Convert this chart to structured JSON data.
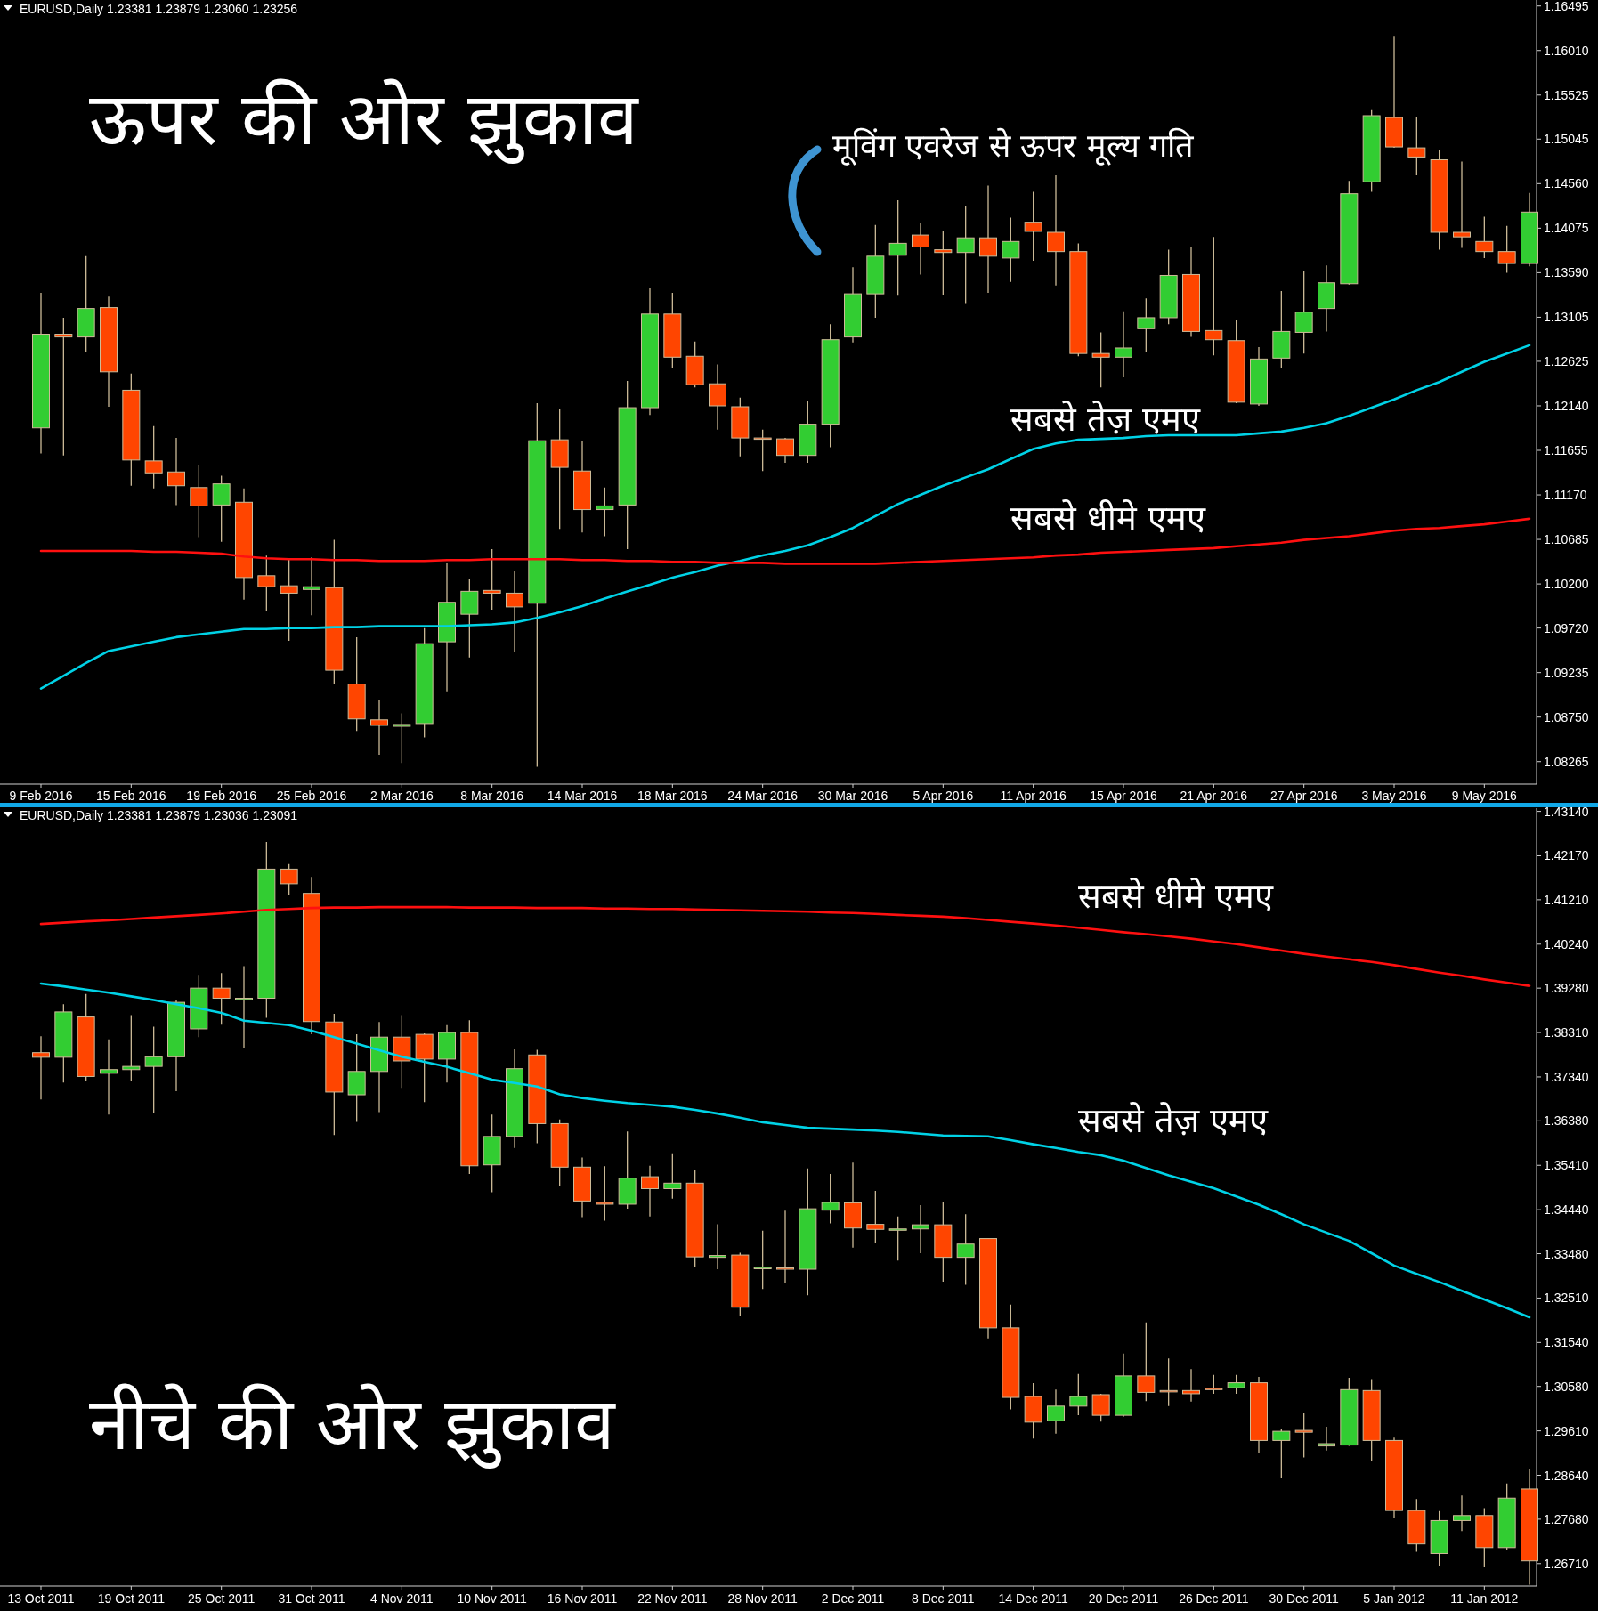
{
  "chart_data": [
    {
      "type": "candlestick",
      "title": "ऊपर की ओर झुकाव",
      "subtitle": "EURUSD,Daily  1.23381 1.23879 1.23060 1.23256",
      "annotations": [
        "मूविंग एवरेज से ऊपर मूल्य गति"
      ],
      "categories": [
        "9 Feb 2016",
        null,
        null,
        null,
        "15 Feb 2016",
        null,
        null,
        null,
        "19 Feb 2016",
        null,
        null,
        null,
        "25 Feb 2016",
        null,
        null,
        null,
        "2 Mar 2016",
        null,
        null,
        null,
        "8 Mar 2016",
        null,
        null,
        null,
        "14 Mar 2016",
        null,
        null,
        null,
        "18 Mar 2016",
        null,
        null,
        null,
        "24 Mar 2016",
        null,
        null,
        null,
        "30 Mar 2016",
        null,
        null,
        null,
        "5 Apr 2016",
        null,
        null,
        null,
        "11 Apr 2016",
        null,
        null,
        null,
        "15 Apr 2016",
        null,
        null,
        null,
        "21 Apr 2016",
        null,
        null,
        null,
        "27 Apr 2016",
        null,
        null,
        null,
        "3 May 2016",
        null,
        null,
        null,
        "9 May 2016",
        null,
        null
      ],
      "ohlc": [
        [
          1.119,
          1.1337,
          1.1162,
          1.1292
        ],
        [
          1.1292,
          1.131,
          1.116,
          1.1289
        ],
        [
          1.1289,
          1.1377,
          1.1273,
          1.132
        ],
        [
          1.1321,
          1.1333,
          1.1213,
          1.1251
        ],
        [
          1.1231,
          1.1249,
          1.1127,
          1.1155
        ],
        [
          1.1154,
          1.1192,
          1.1124,
          1.1141
        ],
        [
          1.1142,
          1.1179,
          1.1106,
          1.1127
        ],
        [
          1.1125,
          1.1149,
          1.1071,
          1.1105
        ],
        [
          1.1106,
          1.1138,
          1.1066,
          1.1129
        ],
        [
          1.1109,
          1.1124,
          1.1003,
          1.1027
        ],
        [
          1.1029,
          1.1051,
          1.099,
          1.1017
        ],
        [
          1.1018,
          1.1047,
          1.0958,
          1.101
        ],
        [
          1.1014,
          1.1049,
          1.0986,
          1.1017
        ],
        [
          1.1016,
          1.1068,
          1.0911,
          1.0926
        ],
        [
          1.0911,
          1.0962,
          1.086,
          1.0873
        ],
        [
          1.0872,
          1.0893,
          1.0834,
          1.0866
        ],
        [
          1.0865,
          1.0879,
          1.0825,
          1.0867
        ],
        [
          1.0868,
          1.0972,
          1.0853,
          1.0955
        ],
        [
          1.0957,
          1.1043,
          1.0903,
          1.1
        ],
        [
          1.0987,
          1.1026,
          1.094,
          1.1012
        ],
        [
          1.1013,
          1.1058,
          1.0992,
          1.101
        ],
        [
          1.101,
          1.1034,
          1.0946,
          1.0995
        ],
        [
          1.0999,
          1.1217,
          1.0821,
          1.1176
        ],
        [
          1.1177,
          1.121,
          1.108,
          1.1147
        ],
        [
          1.1143,
          1.1176,
          1.1076,
          1.1101
        ],
        [
          1.1101,
          1.1125,
          1.1072,
          1.1105
        ],
        [
          1.1106,
          1.1241,
          1.1058,
          1.1212
        ],
        [
          1.1212,
          1.1342,
          1.1204,
          1.1314
        ],
        [
          1.1314,
          1.1337,
          1.1255,
          1.1267
        ],
        [
          1.1268,
          1.1284,
          1.1234,
          1.1237
        ],
        [
          1.1238,
          1.1259,
          1.1188,
          1.1214
        ],
        [
          1.1213,
          1.1223,
          1.1159,
          1.1179
        ],
        [
          1.1179,
          1.1188,
          1.1143,
          1.1178
        ],
        [
          1.1178,
          1.1179,
          1.1152,
          1.116
        ],
        [
          1.116,
          1.1219,
          1.1152,
          1.1194
        ],
        [
          1.1194,
          1.1303,
          1.1169,
          1.1286
        ],
        [
          1.1289,
          1.1365,
          1.1283,
          1.1336
        ],
        [
          1.1336,
          1.1411,
          1.131,
          1.1377
        ],
        [
          1.1378,
          1.1438,
          1.1334,
          1.1391
        ],
        [
          1.14,
          1.1413,
          1.1357,
          1.1387
        ],
        [
          1.1384,
          1.1405,
          1.1335,
          1.1381
        ],
        [
          1.1381,
          1.1431,
          1.1326,
          1.1397
        ],
        [
          1.1397,
          1.1454,
          1.1337,
          1.1377
        ],
        [
          1.1375,
          1.1419,
          1.1349,
          1.1393
        ],
        [
          1.1414,
          1.1447,
          1.1372,
          1.1404
        ],
        [
          1.1403,
          1.1465,
          1.1345,
          1.1382
        ],
        [
          1.1382,
          1.1391,
          1.1268,
          1.1271
        ],
        [
          1.1271,
          1.1294,
          1.1234,
          1.1267
        ],
        [
          1.1267,
          1.1317,
          1.1245,
          1.1277
        ],
        [
          1.1298,
          1.1331,
          1.1273,
          1.131
        ],
        [
          1.131,
          1.1384,
          1.1303,
          1.1356
        ],
        [
          1.1357,
          1.1387,
          1.1289,
          1.1295
        ],
        [
          1.1296,
          1.1398,
          1.1269,
          1.1286
        ],
        [
          1.1285,
          1.1307,
          1.1217,
          1.1218
        ],
        [
          1.1216,
          1.1278,
          1.1214,
          1.1265
        ],
        [
          1.1266,
          1.1339,
          1.1255,
          1.1295
        ],
        [
          1.1294,
          1.1361,
          1.1271,
          1.1316
        ],
        [
          1.132,
          1.1367,
          1.1295,
          1.1348
        ],
        [
          1.1347,
          1.1459,
          1.1346,
          1.1445
        ],
        [
          1.1458,
          1.1536,
          1.1447,
          1.153
        ],
        [
          1.1528,
          1.1616,
          1.1495,
          1.1496
        ],
        [
          1.1495,
          1.1529,
          1.1465,
          1.1485
        ],
        [
          1.1482,
          1.1493,
          1.1384,
          1.1403
        ],
        [
          1.1403,
          1.148,
          1.1386,
          1.1398
        ],
        [
          1.1393,
          1.142,
          1.1375,
          1.1382
        ],
        [
          1.1382,
          1.141,
          1.1359,
          1.1369
        ],
        [
          1.1369,
          1.1446,
          1.1366,
          1.1425
        ]
      ],
      "series": [
        {
          "name": "सबसे तेज़ एमए",
          "type": "line",
          "color": "#00d2e6",
          "values": [
            1.0906,
            1.092,
            1.0934,
            1.0947,
            1.0952,
            1.0957,
            1.0962,
            1.0965,
            1.0968,
            1.0971,
            1.0971,
            1.0972,
            1.0972,
            1.0973,
            1.0973,
            1.0974,
            1.0974,
            1.0974,
            1.0974,
            1.0975,
            1.0976,
            1.0978,
            1.0983,
            1.0989,
            1.0996,
            1.1004,
            1.1012,
            1.1019,
            1.1027,
            1.1033,
            1.104,
            1.1045,
            1.1051,
            1.1056,
            1.1062,
            1.1071,
            1.1081,
            1.1094,
            1.1107,
            1.1117,
            1.1127,
            1.1136,
            1.1145,
            1.1156,
            1.1167,
            1.1173,
            1.1177,
            1.1178,
            1.1179,
            1.1181,
            1.1182,
            1.1182,
            1.1182,
            1.1182,
            1.1184,
            1.1186,
            1.119,
            1.1195,
            1.1203,
            1.1212,
            1.1221,
            1.1231,
            1.124,
            1.1251,
            1.1262,
            1.1271,
            1.128
          ]
        },
        {
          "name": "सबसे धीमे एमए",
          "type": "line",
          "color": "#ff1010",
          "values": [
            1.1056,
            1.1056,
            1.1056,
            1.1056,
            1.1056,
            1.1055,
            1.1055,
            1.1054,
            1.1053,
            1.105,
            1.1048,
            1.1047,
            1.1047,
            1.1046,
            1.1046,
            1.1045,
            1.1045,
            1.1045,
            1.1046,
            1.1046,
            1.1047,
            1.1047,
            1.1047,
            1.1047,
            1.1046,
            1.1046,
            1.1045,
            1.1045,
            1.1044,
            1.1044,
            1.1043,
            1.1043,
            1.1043,
            1.1042,
            1.1042,
            1.1042,
            1.1042,
            1.1042,
            1.1043,
            1.1044,
            1.1045,
            1.1046,
            1.1047,
            1.1048,
            1.1049,
            1.1051,
            1.1052,
            1.1054,
            1.1055,
            1.1056,
            1.1057,
            1.1058,
            1.1059,
            1.1061,
            1.1063,
            1.1065,
            1.1068,
            1.107,
            1.1072,
            1.1075,
            1.1078,
            1.108,
            1.1081,
            1.1083,
            1.1085,
            1.1088,
            1.1091
          ]
        }
      ],
      "ylim": [
        1.0802,
        1.1656
      ],
      "yticks": [
        1.16495,
        {
          "value": 1.1601,
          "label": "1.16010"
        },
        1.15525,
        1.15045,
        {
          "value": 1.1456,
          "label": "1.14560"
        },
        1.14075,
        {
          "value": 1.1359,
          "label": "1.13590"
        },
        1.13105,
        1.12625,
        {
          "value": 1.1214,
          "label": "1.12140"
        },
        1.11655,
        {
          "value": 1.1117,
          "label": "1.11170"
        },
        1.10685,
        {
          "value": 1.102,
          "label": "1.10200"
        },
        {
          "value": 1.0972,
          "label": "1.09720"
        },
        1.09235,
        {
          "value": 1.0875,
          "label": "1.08750"
        },
        1.08265
      ]
    },
    {
      "type": "candlestick",
      "title": "नीचे की ओर झुकाव",
      "subtitle": "EURUSD,Daily  1.23381 1.23879 1.23036 1.23091",
      "categories": [
        "13 Oct 2011",
        null,
        null,
        null,
        "19 Oct 2011",
        null,
        null,
        null,
        "25 Oct 2011",
        null,
        null,
        null,
        "31 Oct 2011",
        null,
        null,
        null,
        "4 Nov 2011",
        null,
        null,
        null,
        "10 Nov 2011",
        null,
        null,
        null,
        "16 Nov 2011",
        null,
        null,
        null,
        "22 Nov 2011",
        null,
        null,
        null,
        "28 Nov 2011",
        null,
        null,
        null,
        "2 Dec 2011",
        null,
        null,
        null,
        "8 Dec 2011",
        null,
        null,
        null,
        "14 Dec 2011",
        null,
        null,
        null,
        "20 Dec 2011",
        null,
        null,
        null,
        "26 Dec 2011",
        null,
        null,
        null,
        "30 Dec 2011",
        null,
        null,
        null,
        "5 Jan 2012",
        null,
        null,
        null,
        "11 Jan 2012",
        null,
        null
      ],
      "ohlc": [
        [
          1.3787,
          1.3823,
          1.3685,
          1.3777
        ],
        [
          1.3777,
          1.3893,
          1.3722,
          1.3876
        ],
        [
          1.3865,
          1.3915,
          1.3724,
          1.3735
        ],
        [
          1.3742,
          1.3816,
          1.3652,
          1.375
        ],
        [
          1.375,
          1.3869,
          1.3724,
          1.3757
        ],
        [
          1.3757,
          1.3844,
          1.3654,
          1.3778
        ],
        [
          1.3778,
          1.3902,
          1.3703,
          1.3897
        ],
        [
          1.3839,
          1.3957,
          1.3821,
          1.3928
        ],
        [
          1.3928,
          1.3961,
          1.3848,
          1.3906
        ],
        [
          1.3904,
          1.3976,
          1.3798,
          1.3906
        ],
        [
          1.3906,
          1.4247,
          1.3863,
          1.4188
        ],
        [
          1.4188,
          1.4199,
          1.4131,
          1.4156
        ],
        [
          1.4135,
          1.4171,
          1.3827,
          1.3855
        ],
        [
          1.3854,
          1.3872,
          1.3607,
          1.3701
        ],
        [
          1.3695,
          1.3827,
          1.3636,
          1.3746
        ],
        [
          1.3746,
          1.3854,
          1.3657,
          1.3821
        ],
        [
          1.3821,
          1.3869,
          1.371,
          1.3769
        ],
        [
          1.3827,
          1.3829,
          1.3679,
          1.3773
        ],
        [
          1.3773,
          1.3847,
          1.3722,
          1.3831
        ],
        [
          1.3831,
          1.3858,
          1.3522,
          1.354
        ],
        [
          1.3542,
          1.3652,
          1.3482,
          1.3604
        ],
        [
          1.3604,
          1.3794,
          1.3579,
          1.3752
        ],
        [
          1.3782,
          1.3793,
          1.3589,
          1.3632
        ],
        [
          1.3632,
          1.3641,
          1.3496,
          1.3537
        ],
        [
          1.3537,
          1.3558,
          1.3428,
          1.3463
        ],
        [
          1.346,
          1.3539,
          1.342,
          1.3456
        ],
        [
          1.3456,
          1.3615,
          1.3446,
          1.3513
        ],
        [
          1.3516,
          1.354,
          1.3429,
          1.349
        ],
        [
          1.349,
          1.3567,
          1.3468,
          1.3502
        ],
        [
          1.3502,
          1.353,
          1.3319,
          1.3341
        ],
        [
          1.334,
          1.3412,
          1.3314,
          1.3344
        ],
        [
          1.3345,
          1.335,
          1.3212,
          1.3231
        ],
        [
          1.3315,
          1.3398,
          1.3271,
          1.3318
        ],
        [
          1.3317,
          1.3442,
          1.3284,
          1.3314
        ],
        [
          1.3314,
          1.3534,
          1.3257,
          1.3446
        ],
        [
          1.3443,
          1.3522,
          1.3414,
          1.346
        ],
        [
          1.3459,
          1.3547,
          1.3361,
          1.3404
        ],
        [
          1.3412,
          1.3485,
          1.3372,
          1.3401
        ],
        [
          1.3399,
          1.3429,
          1.3333,
          1.3402
        ],
        [
          1.3402,
          1.3454,
          1.3349,
          1.3411
        ],
        [
          1.3411,
          1.346,
          1.3287,
          1.334
        ],
        [
          1.334,
          1.3434,
          1.328,
          1.3369
        ],
        [
          1.3381,
          1.3381,
          1.3163,
          1.3186
        ],
        [
          1.3186,
          1.3237,
          1.3008,
          1.3034
        ],
        [
          1.3036,
          1.3065,
          1.2944,
          1.298
        ],
        [
          1.2983,
          1.3051,
          1.2955,
          1.3015
        ],
        [
          1.3015,
          1.3085,
          1.2995,
          1.3036
        ],
        [
          1.304,
          1.3042,
          1.2981,
          1.2995
        ],
        [
          1.2995,
          1.313,
          1.2992,
          1.3081
        ],
        [
          1.3081,
          1.3198,
          1.3026,
          1.3045
        ],
        [
          1.3049,
          1.3119,
          1.3015,
          1.3046
        ],
        [
          1.3049,
          1.3096,
          1.3025,
          1.3042
        ],
        [
          1.3054,
          1.3083,
          1.3042,
          1.3051
        ],
        [
          1.3055,
          1.3083,
          1.3042,
          1.3066
        ],
        [
          1.3066,
          1.3079,
          1.2912,
          1.294
        ],
        [
          1.294,
          1.2964,
          1.2857,
          1.296
        ],
        [
          1.2962,
          1.2999,
          1.2903,
          1.2958
        ],
        [
          1.2928,
          1.297,
          1.2918,
          1.2933
        ],
        [
          1.293,
          1.3077,
          1.2928,
          1.3051
        ],
        [
          1.3049,
          1.3074,
          1.2896,
          1.294
        ],
        [
          1.294,
          1.2946,
          1.2771,
          1.2787
        ],
        [
          1.2787,
          1.2812,
          1.2697,
          1.2714
        ],
        [
          1.2693,
          1.2786,
          1.2665,
          1.2765
        ],
        [
          1.2765,
          1.282,
          1.2742,
          1.2776
        ],
        [
          1.2776,
          1.2792,
          1.2663,
          1.2706
        ],
        [
          1.2706,
          1.2846,
          1.2701,
          1.2814
        ],
        [
          1.2834,
          1.2877,
          1.2625,
          1.2677
        ]
      ],
      "series": [
        {
          "name": "सबसे धीमे एमए",
          "type": "line",
          "color": "#ff1010",
          "values": [
            1.4068,
            1.4071,
            1.4074,
            1.4076,
            1.4079,
            1.4082,
            1.4085,
            1.4088,
            1.4091,
            1.4095,
            1.4099,
            1.4101,
            1.4103,
            1.4104,
            1.4104,
            1.4105,
            1.4105,
            1.4105,
            1.4105,
            1.4104,
            1.4104,
            1.4104,
            1.4103,
            1.4103,
            1.4103,
            1.4102,
            1.4102,
            1.4101,
            1.4101,
            1.41,
            1.4099,
            1.4098,
            1.4097,
            1.4096,
            1.4095,
            1.4093,
            1.4092,
            1.409,
            1.4088,
            1.4086,
            1.4084,
            1.4081,
            1.4077,
            1.4073,
            1.4069,
            1.4065,
            1.406,
            1.4055,
            1.405,
            1.4046,
            1.4041,
            1.4036,
            1.403,
            1.4024,
            1.4017,
            1.401,
            1.4003,
            1.3997,
            1.3991,
            1.3985,
            1.3978,
            1.397,
            1.3962,
            1.3955,
            1.3947,
            1.394,
            1.3933
          ]
        },
        {
          "name": "सबसे तेज़ एमए",
          "type": "line",
          "color": "#00d2e6",
          "values": [
            1.3938,
            1.3932,
            1.3925,
            1.3918,
            1.391,
            1.3902,
            1.3893,
            1.3884,
            1.3874,
            1.3857,
            1.3852,
            1.3847,
            1.3835,
            1.3821,
            1.3807,
            1.3792,
            1.3778,
            1.3767,
            1.3756,
            1.3742,
            1.3728,
            1.3721,
            1.3713,
            1.3696,
            1.3688,
            1.3682,
            1.3677,
            1.3673,
            1.3669,
            1.3662,
            1.3654,
            1.3645,
            1.3635,
            1.3629,
            1.3623,
            1.3621,
            1.3619,
            1.3617,
            1.3614,
            1.361,
            1.3606,
            1.3605,
            1.3604,
            1.3596,
            1.3587,
            1.3579,
            1.357,
            1.3563,
            1.3551,
            1.3535,
            1.3519,
            1.3505,
            1.3491,
            1.3473,
            1.3455,
            1.3434,
            1.3412,
            1.3394,
            1.3376,
            1.3349,
            1.3322,
            1.3304,
            1.3286,
            1.3267,
            1.3248,
            1.3229,
            1.3209
          ]
        }
      ],
      "ylim": [
        1.2622,
        1.4321
      ],
      "yticks": [
        {
          "value": 1.4314,
          "label": "1.43140"
        },
        {
          "value": 1.4217,
          "label": "1.42170"
        },
        {
          "value": 1.4121,
          "label": "1.41210"
        },
        {
          "value": 1.4024,
          "label": "1.40240"
        },
        {
          "value": 1.3928,
          "label": "1.39280"
        },
        {
          "value": 1.3831,
          "label": "1.38310"
        },
        {
          "value": 1.3734,
          "label": "1.37340"
        },
        {
          "value": 1.3638,
          "label": "1.36380"
        },
        {
          "value": 1.3541,
          "label": "1.35410"
        },
        {
          "value": 1.3444,
          "label": "1.34440"
        },
        {
          "value": 1.3348,
          "label": "1.33480"
        },
        {
          "value": 1.3251,
          "label": "1.32510"
        },
        {
          "value": 1.3154,
          "label": "1.31540"
        },
        {
          "value": 1.3058,
          "label": "1.30580"
        },
        {
          "value": 1.2961,
          "label": "1.29610"
        },
        {
          "value": 1.2864,
          "label": "1.28640"
        },
        {
          "value": 1.2768,
          "label": "1.27680"
        },
        {
          "value": 1.2671,
          "label": "1.26710"
        }
      ]
    }
  ]
}
